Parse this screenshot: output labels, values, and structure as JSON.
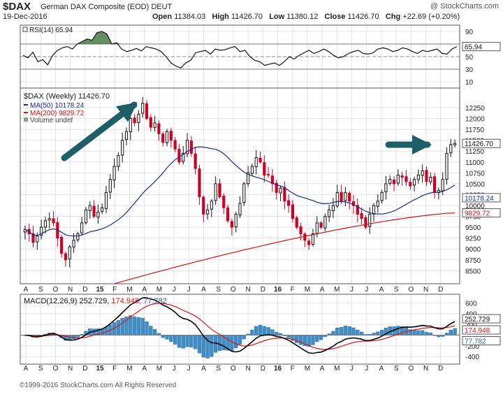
{
  "header": {
    "symbol": "$DAX",
    "name": "German DAX Composite (EOD)",
    "exchange": "DEUT",
    "date": "19-Dec-2016",
    "brand": "@ StockCharts.com",
    "open_label": "Open",
    "open": "11384.03",
    "high_label": "High",
    "high": "11426.70",
    "low_label": "Low",
    "low": "11380.12",
    "close_label": "Close",
    "close": "11426.70",
    "chg_label": "Chg",
    "chg": "+22.69 (+0.20%)"
  },
  "footer": {
    "copyright": "©1999-2016 StockCharts.com  All Rights Reserved"
  },
  "colors": {
    "up": "#111111",
    "down": "#cc0022",
    "ma50": "#1a2a88",
    "ma200": "#cc1111",
    "macd": "#000000",
    "signal": "#dd1111",
    "hist": "#3d8ec9",
    "arrow": "#1e5e66"
  },
  "chart_data": [
    {
      "panel": "rsi",
      "type": "line",
      "legend": "RSI(14) 65.94",
      "ylim": [
        0,
        100
      ],
      "yticks": [
        "90",
        "70",
        "50",
        "30",
        "10"
      ],
      "ytick_values": [
        90,
        70,
        50,
        30,
        10
      ],
      "last_value": "65.94",
      "values": [
        52,
        48,
        57,
        42,
        45,
        37,
        52,
        60,
        64,
        66,
        62,
        70,
        74,
        78,
        76,
        88,
        90,
        86,
        70,
        72,
        62,
        58,
        60,
        63,
        59,
        66,
        64,
        62,
        58,
        50,
        40,
        35,
        32,
        40,
        44,
        56,
        58,
        60,
        54,
        62,
        60,
        61,
        64,
        66,
        58,
        60,
        50,
        44,
        42,
        36,
        38,
        40,
        36,
        42,
        50,
        46,
        52,
        56,
        60,
        55,
        58,
        62,
        58,
        52,
        48,
        50,
        55,
        58,
        60,
        55,
        54,
        56,
        62,
        64,
        62,
        58,
        60,
        64,
        62,
        58,
        55,
        60,
        58,
        60,
        62,
        55,
        54,
        62,
        66
      ]
    },
    {
      "panel": "price",
      "type": "candlestick",
      "legend": [
        "$DAX (Weekly) 11426.70",
        "MA(50) 10178.24",
        "MA(200) 9829.72",
        "Volume undef"
      ],
      "ylim": [
        8200,
        12700
      ],
      "yticks": [
        "12250",
        "12000",
        "11750",
        "11500",
        "11250",
        "11000",
        "10750",
        "10500",
        "10250",
        "10000",
        "9750",
        "9500",
        "9250",
        "9000",
        "8750",
        "8500"
      ],
      "ytick_values": [
        12250,
        12000,
        11750,
        11500,
        11250,
        11000,
        10750,
        10500,
        10250,
        10000,
        9750,
        9500,
        9250,
        9000,
        8750,
        8500
      ],
      "x_labels": [
        "A",
        "S",
        "O",
        "N",
        "D",
        "15",
        "F",
        "M",
        "A",
        "M",
        "J",
        "J",
        "A",
        "S",
        "O",
        "N",
        "D",
        "16",
        "F",
        "M",
        "A",
        "M",
        "J",
        "J",
        "A",
        "S",
        "O",
        "N",
        "D"
      ],
      "last_labels": {
        "close": "11426.70",
        "ma50": "10178.24",
        "ma200": "9829.72"
      },
      "close": [
        9450,
        9350,
        9150,
        9300,
        9500,
        9650,
        9700,
        9600,
        9250,
        8900,
        8750,
        9050,
        9200,
        9350,
        9600,
        9900,
        10000,
        9750,
        9850,
        9950,
        10300,
        10600,
        10900,
        11150,
        11500,
        11700,
        12000,
        11900,
        12100,
        12350,
        12000,
        11800,
        11900,
        11650,
        11450,
        11700,
        11500,
        11300,
        11000,
        11200,
        11500,
        11200,
        10850,
        10200,
        9800,
        9900,
        10100,
        10500,
        10200,
        9950,
        9650,
        9500,
        9800,
        10050,
        10500,
        10750,
        10900,
        11100,
        11000,
        10700,
        10700,
        10500,
        10300,
        10400,
        10100,
        10000,
        9700,
        9500,
        9350,
        9200,
        9100,
        9350,
        9600,
        9500,
        9750,
        9900,
        10000,
        10300,
        10100,
        10300,
        10100,
        10000,
        9800,
        9700,
        9500,
        9800,
        10000,
        10100,
        10300,
        10500,
        10600,
        10500,
        10700,
        10650,
        10550,
        10450,
        10600,
        10700,
        10800,
        10550,
        10650,
        10300,
        10350,
        10600,
        11200,
        11400,
        11426.7
      ]
    },
    {
      "panel": "macd",
      "type": "line+histogram",
      "legend": {
        "name": "MACD(12,26,9)",
        "macd": "252.729",
        "signal": "174.948",
        "hist": "77.782"
      },
      "ylim": [
        -540,
        760
      ],
      "yticks": [
        "600",
        "400",
        "200",
        "-200",
        "-400"
      ],
      "ytick_values": [
        600,
        400,
        200,
        -200,
        -400
      ],
      "x_labels": [
        "A",
        "S",
        "O",
        "N",
        "D",
        "15",
        "F",
        "M",
        "A",
        "M",
        "J",
        "J",
        "A",
        "S",
        "O",
        "N",
        "D",
        "16",
        "F",
        "M",
        "A",
        "M",
        "J",
        "J",
        "A",
        "S",
        "O",
        "N",
        "D"
      ],
      "last_labels": {
        "macd": "252.729",
        "signal": "174.948",
        "hist": "77.782"
      }
    }
  ]
}
